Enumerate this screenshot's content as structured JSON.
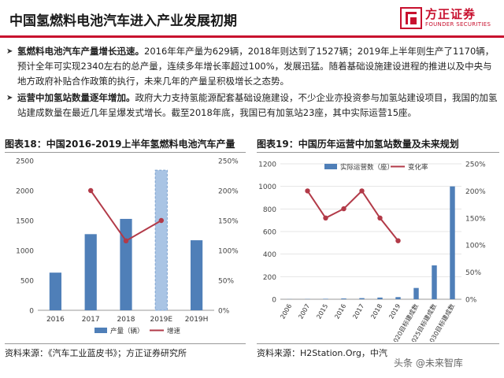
{
  "header": {
    "title": "中国氢燃料电池汽车进入产业发展初期",
    "logo_cn": "方正证券",
    "logo_en": "FOUNDER SECURITIES",
    "accent_color": "#c8102e"
  },
  "bullets": [
    {
      "lead": "氢燃料电池汽车产量增长迅速。",
      "text": "2016年年产量为629辆，2018年则达到了1527辆；2019年上半年则生产了1170辆，预计全年可实现2340左右的总产量，连续多年增长率超过100%，发展迅猛。随着基础设施建设进程的推进以及中央与地方政府补贴合作政策的执行，未来几年的产量呈积极增长之态势。"
    },
    {
      "lead": "运营中加氢站数量逐年增加。",
      "text": "政府大力支持氢能源配套基础设施建设，不少企业亦投资参与加氢站建设项目，我国的加氢站建成数量在最近几年呈爆发式增长。截至2018年底，我国已有加氢站23座，其中实际运营15座。"
    }
  ],
  "chart_data": [
    {
      "label": "图表18：",
      "title": "中国2016-2019上半年氢燃料电池汽车产量",
      "type": "bar",
      "categories": [
        "2016",
        "2017",
        "2018",
        "2019E",
        "2019H"
      ],
      "y_ticks": [
        "0",
        "500",
        "1000",
        "1500",
        "2000",
        "2500"
      ],
      "y2_ticks": [
        "0%",
        "50%",
        "100%",
        "150%",
        "200%",
        "250%"
      ],
      "ylim": [
        0,
        2500
      ],
      "y2lim": [
        0,
        250
      ],
      "series": [
        {
          "name": "产量（辆）",
          "type": "bar",
          "values": [
            629,
            1272,
            1527,
            2340,
            1170
          ],
          "color": "#4f7fb8",
          "estimate_color": "#a9c4e4"
        },
        {
          "name": "增速",
          "type": "line",
          "values": [
            null,
            200,
            116,
            150,
            null
          ],
          "color": "#b23a48"
        }
      ],
      "legend_position": "bottom",
      "source": "资料来源：《汽车工业蓝皮书》；方正证券研究所"
    },
    {
      "label": "图表19：",
      "title": "中国历年运营中加氢站数量及未来规划",
      "type": "bar",
      "categories": [
        "2006",
        "2007",
        "2015",
        "2016",
        "2017",
        "2018",
        "2019",
        "2020目标建成数",
        "2025目标建成数",
        "2030目标建成数"
      ],
      "y_ticks": [
        "0",
        "200",
        "400",
        "600",
        "800",
        "1000",
        "1200"
      ],
      "y2_ticks": [
        "0%",
        "50%",
        "100%",
        "150%",
        "200%",
        "250%"
      ],
      "ylim": [
        0,
        1200
      ],
      "y2lim": [
        0,
        250
      ],
      "series": [
        {
          "name": "实际运营数（座）",
          "type": "bar",
          "values": [
            1,
            2,
            4,
            7,
            10,
            15,
            19,
            100,
            300,
            1000
          ],
          "color": "#4f7fb8"
        },
        {
          "name": "变化率",
          "type": "line",
          "values": [
            null,
            200,
            150,
            167,
            200,
            150,
            108,
            null,
            null,
            null
          ],
          "color": "#b23a48"
        }
      ],
      "legend_position": "top",
      "source": "资料来源：H2Station.Org，中汽"
    }
  ],
  "watermark": "头条 @未来智库"
}
